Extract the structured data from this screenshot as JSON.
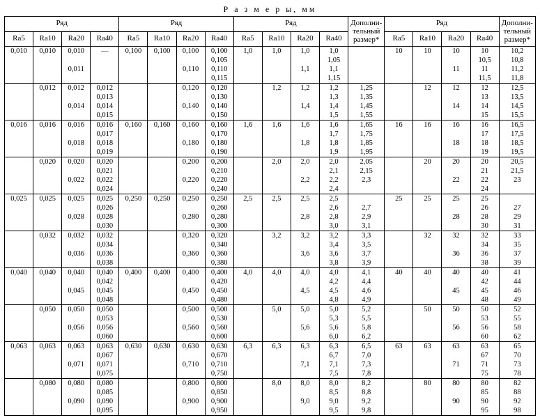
{
  "title": "Р а з м е р ы,  мм",
  "headers": {
    "row_group": "Ряд",
    "extra": "Дополни-\nтельный\nразмер*",
    "cols": [
      "Ra5",
      "Ra10",
      "Ra20",
      "Ra40"
    ]
  },
  "blocks": [
    {
      "panels": [
        {
          "Ra5": [
            "0,010"
          ],
          "Ra10": [
            "0,010"
          ],
          "Ra20": [
            "0,010",
            "0,011"
          ],
          "Ra40": [
            "—"
          ]
        },
        {
          "Ra5": [
            "0,100"
          ],
          "Ra10": [
            "0,100"
          ],
          "Ra20": [
            "0,100",
            "0,110"
          ],
          "Ra40": [
            "0,100",
            "0,105",
            "0,110",
            "0,115"
          ]
        },
        {
          "Ra5": [
            "1,0"
          ],
          "Ra10": [
            "1,0"
          ],
          "Ra20": [
            "1,0",
            "1,1"
          ],
          "Ra40": [
            "1,0",
            "1,05",
            "1,1",
            "1,15"
          ],
          "extra": []
        },
        {
          "Ra5": [
            "10"
          ],
          "Ra10": [
            "10"
          ],
          "Ra20": [
            "10",
            "11"
          ],
          "Ra40": [
            "10",
            "10,5",
            "11",
            "11,5"
          ],
          "extra": [
            "10,2",
            "10,8",
            "11,2",
            "11,8"
          ]
        }
      ]
    },
    {
      "panels": [
        {
          "Ra5": [],
          "Ra10": [
            "0,012"
          ],
          "Ra20": [
            "0,012",
            "0,014"
          ],
          "Ra40": [
            "0,012",
            "0,013",
            "0,014",
            "0,015"
          ]
        },
        {
          "Ra5": [],
          "Ra10": [],
          "Ra20": [
            "0,120",
            "0,140"
          ],
          "Ra40": [
            "0,120",
            "0,130",
            "0,140",
            "0,150"
          ]
        },
        {
          "Ra5": [],
          "Ra10": [
            "1,2"
          ],
          "Ra20": [
            "1,2",
            "1,4"
          ],
          "Ra40": [
            "1,2",
            "1,3",
            "1,4",
            "1,5"
          ],
          "extra": [
            "1,25",
            "1,35",
            "1,45",
            "1,55"
          ]
        },
        {
          "Ra5": [],
          "Ra10": [
            "12"
          ],
          "Ra20": [
            "12",
            "14"
          ],
          "Ra40": [
            "12",
            "13",
            "14",
            "15"
          ],
          "extra": [
            "12,5",
            "13,5",
            "14,5",
            "15,5"
          ]
        }
      ],
      "mergeAboveCols": {
        "p0c0": true,
        "p1c0": true,
        "p1c1": true,
        "p2c0": true,
        "p2e": true,
        "p3c0": true
      }
    },
    {
      "panels": [
        {
          "Ra5": [
            "0,016"
          ],
          "Ra10": [
            "0,016"
          ],
          "Ra20": [
            "0,016",
            "0,018"
          ],
          "Ra40": [
            "0,016",
            "0,017",
            "0,018",
            "0,019"
          ]
        },
        {
          "Ra5": [
            "0,160"
          ],
          "Ra10": [
            "0,160"
          ],
          "Ra20": [
            "0,160",
            "0,180"
          ],
          "Ra40": [
            "0,160",
            "0,170",
            "0,180",
            "0,190"
          ]
        },
        {
          "Ra5": [
            "1,6"
          ],
          "Ra10": [
            "1,6"
          ],
          "Ra20": [
            "1,6",
            "1,8"
          ],
          "Ra40": [
            "1,6",
            "1,7",
            "1,8",
            "1,9"
          ],
          "extra": [
            "1,65",
            "1,75",
            "1,85",
            "1,95"
          ]
        },
        {
          "Ra5": [
            "16"
          ],
          "Ra10": [
            "16"
          ],
          "Ra20": [
            "16",
            "18"
          ],
          "Ra40": [
            "16",
            "17",
            "18",
            "19"
          ],
          "extra": [
            "16,5",
            "17,5",
            "18,5",
            "19,5"
          ]
        }
      ]
    },
    {
      "panels": [
        {
          "Ra5": [],
          "Ra10": [
            "0,020"
          ],
          "Ra20": [
            "0,020",
            "0,022"
          ],
          "Ra40": [
            "0,020",
            "0,021",
            "0,022",
            "0,024"
          ]
        },
        {
          "Ra5": [],
          "Ra10": [],
          "Ra20": [
            "0,200",
            "0,220"
          ],
          "Ra40": [
            "0,200",
            "0,210",
            "0,220",
            "0,240"
          ]
        },
        {
          "Ra5": [],
          "Ra10": [
            "2,0"
          ],
          "Ra20": [
            "2,0",
            "2,2"
          ],
          "Ra40": [
            "2,0",
            "2,1",
            "2,2",
            "2,4"
          ],
          "extra": [
            "2,05",
            "2,15",
            "2,3",
            ""
          ]
        },
        {
          "Ra5": [],
          "Ra10": [
            "20"
          ],
          "Ra20": [
            "20",
            "22"
          ],
          "Ra40": [
            "20",
            "21",
            "22",
            "24"
          ],
          "extra": [
            "20,5",
            "21,5",
            "23",
            ""
          ]
        }
      ],
      "mergeAboveCols": {
        "p0c0": true,
        "p1c0": true,
        "p1c1": true,
        "p2c0": true,
        "p3c0": true
      }
    },
    {
      "panels": [
        {
          "Ra5": [
            "0,025"
          ],
          "Ra10": [
            "0,025"
          ],
          "Ra20": [
            "0,025",
            "0,028"
          ],
          "Ra40": [
            "0,025",
            "0,026",
            "0,028",
            "0,030"
          ]
        },
        {
          "Ra5": [
            "0,250"
          ],
          "Ra10": [
            "0,250"
          ],
          "Ra20": [
            "0,250",
            "0,280"
          ],
          "Ra40": [
            "0,250",
            "0,260",
            "0,280",
            "0,300"
          ]
        },
        {
          "Ra5": [
            "2,5"
          ],
          "Ra10": [
            "2,5"
          ],
          "Ra20": [
            "2,5",
            "2,8"
          ],
          "Ra40": [
            "2,5",
            "2,6",
            "2,8",
            "3,0"
          ],
          "extra": [
            "",
            "2,7",
            "2,9",
            "3,1"
          ]
        },
        {
          "Ra5": [
            "25"
          ],
          "Ra10": [
            "25"
          ],
          "Ra20": [
            "25",
            "28"
          ],
          "Ra40": [
            "25",
            "26",
            "28",
            "30"
          ],
          "extra": [
            "",
            "27",
            "29",
            "31"
          ]
        }
      ]
    },
    {
      "panels": [
        {
          "Ra5": [],
          "Ra10": [
            "0,032"
          ],
          "Ra20": [
            "0,032",
            "0,036"
          ],
          "Ra40": [
            "0,032",
            "0,034",
            "0,036",
            "0,038"
          ]
        },
        {
          "Ra5": [],
          "Ra10": [],
          "Ra20": [
            "0,320",
            "0,360"
          ],
          "Ra40": [
            "0,320",
            "0,340",
            "0,360",
            "0,380"
          ]
        },
        {
          "Ra5": [],
          "Ra10": [
            "3,2"
          ],
          "Ra20": [
            "3,2",
            "3,6"
          ],
          "Ra40": [
            "3,2",
            "3,4",
            "3,6",
            "3,8"
          ],
          "extra": [
            "3,3",
            "3,5",
            "3,7",
            "3,9"
          ]
        },
        {
          "Ra5": [],
          "Ra10": [
            "32"
          ],
          "Ra20": [
            "32",
            "36"
          ],
          "Ra40": [
            "32",
            "34",
            "36",
            "38"
          ],
          "extra": [
            "33",
            "35",
            "37",
            "39"
          ]
        }
      ],
      "mergeAboveCols": {
        "p0c0": true,
        "p1c0": true,
        "p1c1": true,
        "p2c0": true,
        "p3c0": true
      }
    },
    {
      "panels": [
        {
          "Ra5": [
            "0,040"
          ],
          "Ra10": [
            "0,040"
          ],
          "Ra20": [
            "0,040",
            "0,045"
          ],
          "Ra40": [
            "0,040",
            "0,042",
            "0,045",
            "0,048"
          ]
        },
        {
          "Ra5": [
            "0,400"
          ],
          "Ra10": [
            "0,400"
          ],
          "Ra20": [
            "0,400",
            "0,450"
          ],
          "Ra40": [
            "0,400",
            "0,420",
            "0,450",
            "0,480"
          ]
        },
        {
          "Ra5": [
            "4,0"
          ],
          "Ra10": [
            "4,0"
          ],
          "Ra20": [
            "4,0",
            "4,5"
          ],
          "Ra40": [
            "4,0",
            "4,2",
            "4,5",
            "4,8"
          ],
          "extra": [
            "4,1",
            "4,4",
            "4,6",
            "4,9"
          ]
        },
        {
          "Ra5": [
            "40"
          ],
          "Ra10": [
            "40"
          ],
          "Ra20": [
            "40",
            "45"
          ],
          "Ra40": [
            "40",
            "42",
            "45",
            "48"
          ],
          "extra": [
            "41",
            "44",
            "46",
            "49"
          ]
        }
      ]
    },
    {
      "panels": [
        {
          "Ra5": [],
          "Ra10": [
            "0,050"
          ],
          "Ra20": [
            "0,050",
            "0,056"
          ],
          "Ra40": [
            "0,050",
            "0,053",
            "0,056",
            "0,060"
          ]
        },
        {
          "Ra5": [],
          "Ra10": [],
          "Ra20": [
            "0,500",
            "0,560"
          ],
          "Ra40": [
            "0,500",
            "0,530",
            "0,560",
            "0,600"
          ]
        },
        {
          "Ra5": [],
          "Ra10": [
            "5,0"
          ],
          "Ra20": [
            "5,0",
            "5,6"
          ],
          "Ra40": [
            "5,0",
            "5,3",
            "5,6",
            "6,0"
          ],
          "extra": [
            "5,2",
            "5,5",
            "5,8",
            "6,2"
          ]
        },
        {
          "Ra5": [],
          "Ra10": [
            "50"
          ],
          "Ra20": [
            "50",
            "56"
          ],
          "Ra40": [
            "50",
            "53",
            "56",
            "60"
          ],
          "extra": [
            "52",
            "55",
            "58",
            "62"
          ]
        }
      ],
      "mergeAboveCols": {
        "p0c0": true,
        "p1c0": true,
        "p1c1": true,
        "p2c0": true,
        "p3c0": true
      }
    },
    {
      "panels": [
        {
          "Ra5": [
            "0,063"
          ],
          "Ra10": [
            "0,063"
          ],
          "Ra20": [
            "0,063",
            "0,071"
          ],
          "Ra40": [
            "0,063",
            "0,067",
            "0,071",
            "0,075"
          ]
        },
        {
          "Ra5": [
            "0,630"
          ],
          "Ra10": [
            "0,630"
          ],
          "Ra20": [
            "0,630",
            "0,710"
          ],
          "Ra40": [
            "0,630",
            "0,670",
            "0,710",
            "0,750"
          ]
        },
        {
          "Ra5": [
            "6,3"
          ],
          "Ra10": [
            "6,3"
          ],
          "Ra20": [
            "6,3",
            "7,1"
          ],
          "Ra40": [
            "6,3",
            "6,7",
            "7,1",
            "7,5"
          ],
          "extra": [
            "6,5",
            "7,0",
            "7,3",
            "7,8"
          ]
        },
        {
          "Ra5": [
            "63"
          ],
          "Ra10": [
            "63"
          ],
          "Ra20": [
            "63",
            "71"
          ],
          "Ra40": [
            "63",
            "67",
            "71",
            "75"
          ],
          "extra": [
            "65",
            "70",
            "73",
            "78"
          ]
        }
      ]
    },
    {
      "panels": [
        {
          "Ra5": [],
          "Ra10": [
            "0,080"
          ],
          "Ra20": [
            "0,080",
            "0,090"
          ],
          "Ra40": [
            "0,080",
            "0,085",
            "0,090",
            "0,095"
          ]
        },
        {
          "Ra5": [],
          "Ra10": [],
          "Ra20": [
            "0,800",
            "0,900"
          ],
          "Ra40": [
            "0,800",
            "0,850",
            "0,900",
            "0,950"
          ]
        },
        {
          "Ra5": [],
          "Ra10": [
            "8,0"
          ],
          "Ra20": [
            "8,0",
            "9,0"
          ],
          "Ra40": [
            "8,0",
            "8,5",
            "9,0",
            "9,5"
          ],
          "extra": [
            "8,2",
            "8,8",
            "9,2",
            "9,8"
          ]
        },
        {
          "Ra5": [],
          "Ra10": [
            "80"
          ],
          "Ra20": [
            "80",
            "90"
          ],
          "Ra40": [
            "80",
            "85",
            "90",
            "95"
          ],
          "extra": [
            "82",
            "88",
            "92",
            "98"
          ]
        }
      ],
      "mergeAboveCols": {
        "p0c0": true,
        "p1c0": true,
        "p1c1": true,
        "p2c0": true,
        "p3c0": true
      }
    }
  ]
}
